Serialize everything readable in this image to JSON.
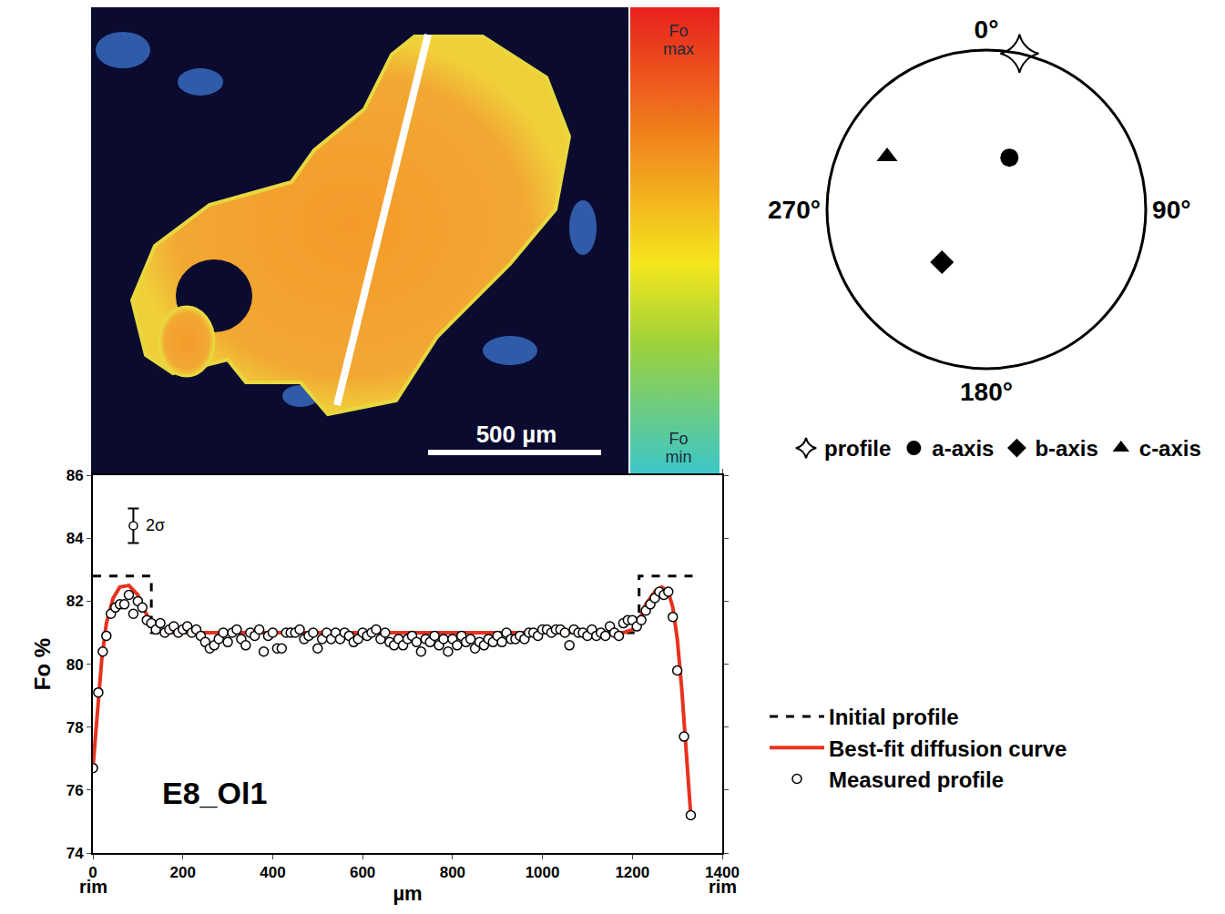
{
  "element_map": {
    "scale_bar": "500 µm",
    "colorbar": [
      "Fo max",
      "Fo min"
    ]
  },
  "chart_data": [
    {
      "type": "line",
      "x_label": "µm",
      "y_label": "Fo %",
      "xlim": [
        0,
        1400
      ],
      "ylim": [
        74,
        86
      ],
      "xticks": [
        0,
        200,
        400,
        600,
        800,
        1000,
        1200,
        1400
      ],
      "yticks": [
        74,
        76,
        78,
        80,
        82,
        84,
        86
      ],
      "grid": false,
      "legend": "right",
      "annotations": [
        {
          "text": "E8_Ol1",
          "x": 270,
          "y": 75.3
        },
        {
          "text": "rim",
          "x": 0
        },
        {
          "text": "rim",
          "x": 1400
        }
      ],
      "error_bar": {
        "label": "2σ",
        "x": 90,
        "y": 84.4,
        "error": 0.55
      },
      "series": [
        {
          "name": "Measured profile",
          "type": "scatter",
          "marker": "open circle",
          "color": "#000000",
          "x": [
            0,
            12,
            22,
            30,
            40,
            50,
            60,
            70,
            80,
            90,
            100,
            110,
            120,
            130,
            140,
            150,
            160,
            170,
            180,
            190,
            200,
            210,
            220,
            230,
            240,
            250,
            260,
            270,
            280,
            290,
            300,
            310,
            320,
            330,
            340,
            350,
            360,
            370,
            380,
            390,
            400,
            410,
            420,
            430,
            440,
            450,
            460,
            470,
            480,
            490,
            500,
            510,
            520,
            530,
            540,
            550,
            560,
            570,
            580,
            590,
            600,
            610,
            620,
            630,
            640,
            650,
            660,
            670,
            680,
            690,
            700,
            710,
            720,
            730,
            740,
            750,
            760,
            770,
            780,
            790,
            800,
            810,
            820,
            830,
            840,
            850,
            860,
            870,
            880,
            890,
            900,
            910,
            920,
            930,
            940,
            950,
            960,
            970,
            980,
            990,
            1000,
            1010,
            1020,
            1030,
            1040,
            1050,
            1060,
            1070,
            1080,
            1090,
            1100,
            1110,
            1120,
            1130,
            1140,
            1150,
            1160,
            1170,
            1180,
            1190,
            1200,
            1210,
            1220,
            1230,
            1240,
            1250,
            1260,
            1270,
            1280,
            1290,
            1300,
            1315,
            1330
          ],
          "values": [
            76.7,
            79.1,
            80.4,
            80.9,
            81.6,
            81.8,
            81.9,
            81.9,
            82.2,
            81.6,
            82.0,
            81.8,
            81.4,
            81.3,
            81.1,
            81.3,
            81.0,
            81.1,
            81.2,
            81.0,
            81.1,
            81.2,
            81.0,
            81.1,
            80.9,
            80.7,
            80.5,
            80.6,
            80.8,
            81.0,
            80.7,
            81.0,
            81.1,
            80.8,
            80.6,
            81.0,
            80.9,
            81.1,
            80.4,
            80.9,
            81.0,
            80.5,
            80.5,
            81.0,
            81.0,
            81.0,
            81.1,
            80.8,
            80.9,
            81.0,
            80.5,
            80.8,
            81.0,
            80.8,
            81.0,
            80.8,
            81.0,
            80.9,
            80.7,
            80.8,
            81.0,
            80.9,
            81.0,
            81.1,
            80.8,
            81.0,
            80.7,
            80.6,
            80.8,
            80.6,
            80.8,
            80.9,
            80.7,
            80.4,
            80.8,
            80.7,
            80.9,
            80.6,
            80.8,
            80.4,
            80.8,
            80.6,
            80.9,
            80.7,
            80.8,
            80.5,
            80.7,
            80.6,
            80.8,
            80.7,
            80.9,
            80.7,
            81.0,
            80.8,
            80.8,
            80.9,
            80.8,
            81.0,
            81.0,
            80.9,
            81.1,
            81.1,
            81.0,
            81.1,
            81.1,
            81.0,
            80.6,
            81.1,
            81.0,
            81.0,
            80.9,
            81.1,
            80.9,
            81.0,
            80.9,
            81.2,
            81.0,
            80.9,
            81.3,
            81.4,
            81.4,
            81.2,
            81.4,
            81.7,
            81.9,
            82.1,
            82.3,
            82.2,
            82.3,
            81.5,
            79.8,
            77.7,
            75.2
          ]
        },
        {
          "name": "Initial profile",
          "type": "line",
          "line_style": "dashed",
          "color": "#000000",
          "x": [
            0,
            130,
            130,
            1215,
            1215,
            1335
          ],
          "values": [
            82.8,
            82.8,
            81.0,
            81.0,
            82.8,
            82.8
          ]
        },
        {
          "name": "Best-fit diffusion curve",
          "type": "line",
          "line_style": "solid",
          "color": "#e8321e",
          "x": [
            0,
            10,
            20,
            30,
            45,
            60,
            80,
            100,
            115,
            130,
            150,
            180,
            1180,
            1200,
            1215,
            1230,
            1250,
            1265,
            1280,
            1290,
            1300,
            1310,
            1320,
            1330
          ],
          "values": [
            76.7,
            78.6,
            80.2,
            81.3,
            82.1,
            82.45,
            82.5,
            82.2,
            81.7,
            81.3,
            81.05,
            81.0,
            81.0,
            81.1,
            81.4,
            81.9,
            82.3,
            82.45,
            82.3,
            81.8,
            80.8,
            79.2,
            77.3,
            75.2
          ]
        }
      ]
    },
    {
      "type": "polar",
      "rlim": [
        0,
        90
      ],
      "angle_ticks": [
        {
          "value": 0,
          "label": "0°"
        },
        {
          "value": 90,
          "label": "90°"
        },
        {
          "value": 180,
          "label": "180°"
        },
        {
          "value": 270,
          "label": "270°"
        }
      ],
      "grid": false,
      "legend": "below",
      "series": [
        {
          "name": "profile",
          "marker": "star",
          "color": "#000000",
          "theta": [
            12
          ],
          "r": [
            90
          ]
        },
        {
          "name": "a-axis",
          "marker": "circle",
          "color": "#000000",
          "theta": [
            24
          ],
          "r": [
            32
          ]
        },
        {
          "name": "b-axis",
          "marker": "diamond",
          "color": "#000000",
          "theta": [
            220
          ],
          "r": [
            39
          ]
        },
        {
          "name": "c-axis",
          "marker": "triangle",
          "color": "#000000",
          "theta": [
            298
          ],
          "r": [
            63.5
          ]
        }
      ]
    }
  ]
}
